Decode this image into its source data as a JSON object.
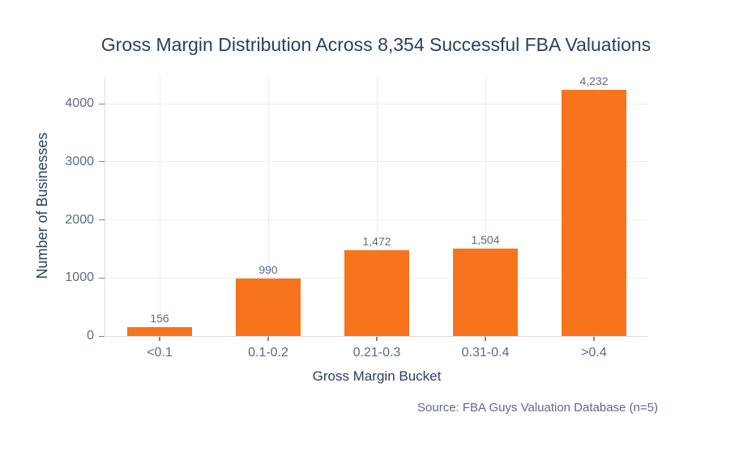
{
  "chart_data": {
    "type": "bar",
    "title": "Gross Margin Distribution Across 8,354 Successful FBA Valuations",
    "categories": [
      "<0.1",
      "0.1-0.2",
      "0.21-0.3",
      "0.31-0.4",
      ">0.4"
    ],
    "values": [
      156,
      990,
      1472,
      1504,
      4232
    ],
    "value_labels": [
      "156",
      "990",
      "1,472",
      "1,504",
      "4,232"
    ],
    "xlabel": "Gross Margin Bucket",
    "ylabel": "Number of Businesses",
    "yticks": [
      0,
      1000,
      2000,
      3000,
      4000
    ],
    "ylim": [
      0,
      4460
    ],
    "grid": true,
    "bar_color": "#F7741D",
    "source_note": "Source: FBA Guys Valuation Database (n=5)"
  },
  "colors": {
    "background": "#FFFFFF",
    "bar": "#F7741D",
    "title_text": "#2A3F5F",
    "axis_text": "#5B6B82",
    "grid_line": "#EBEDF1",
    "axis_line": "#D9DDE3",
    "tick_mark": "#7C8698"
  }
}
